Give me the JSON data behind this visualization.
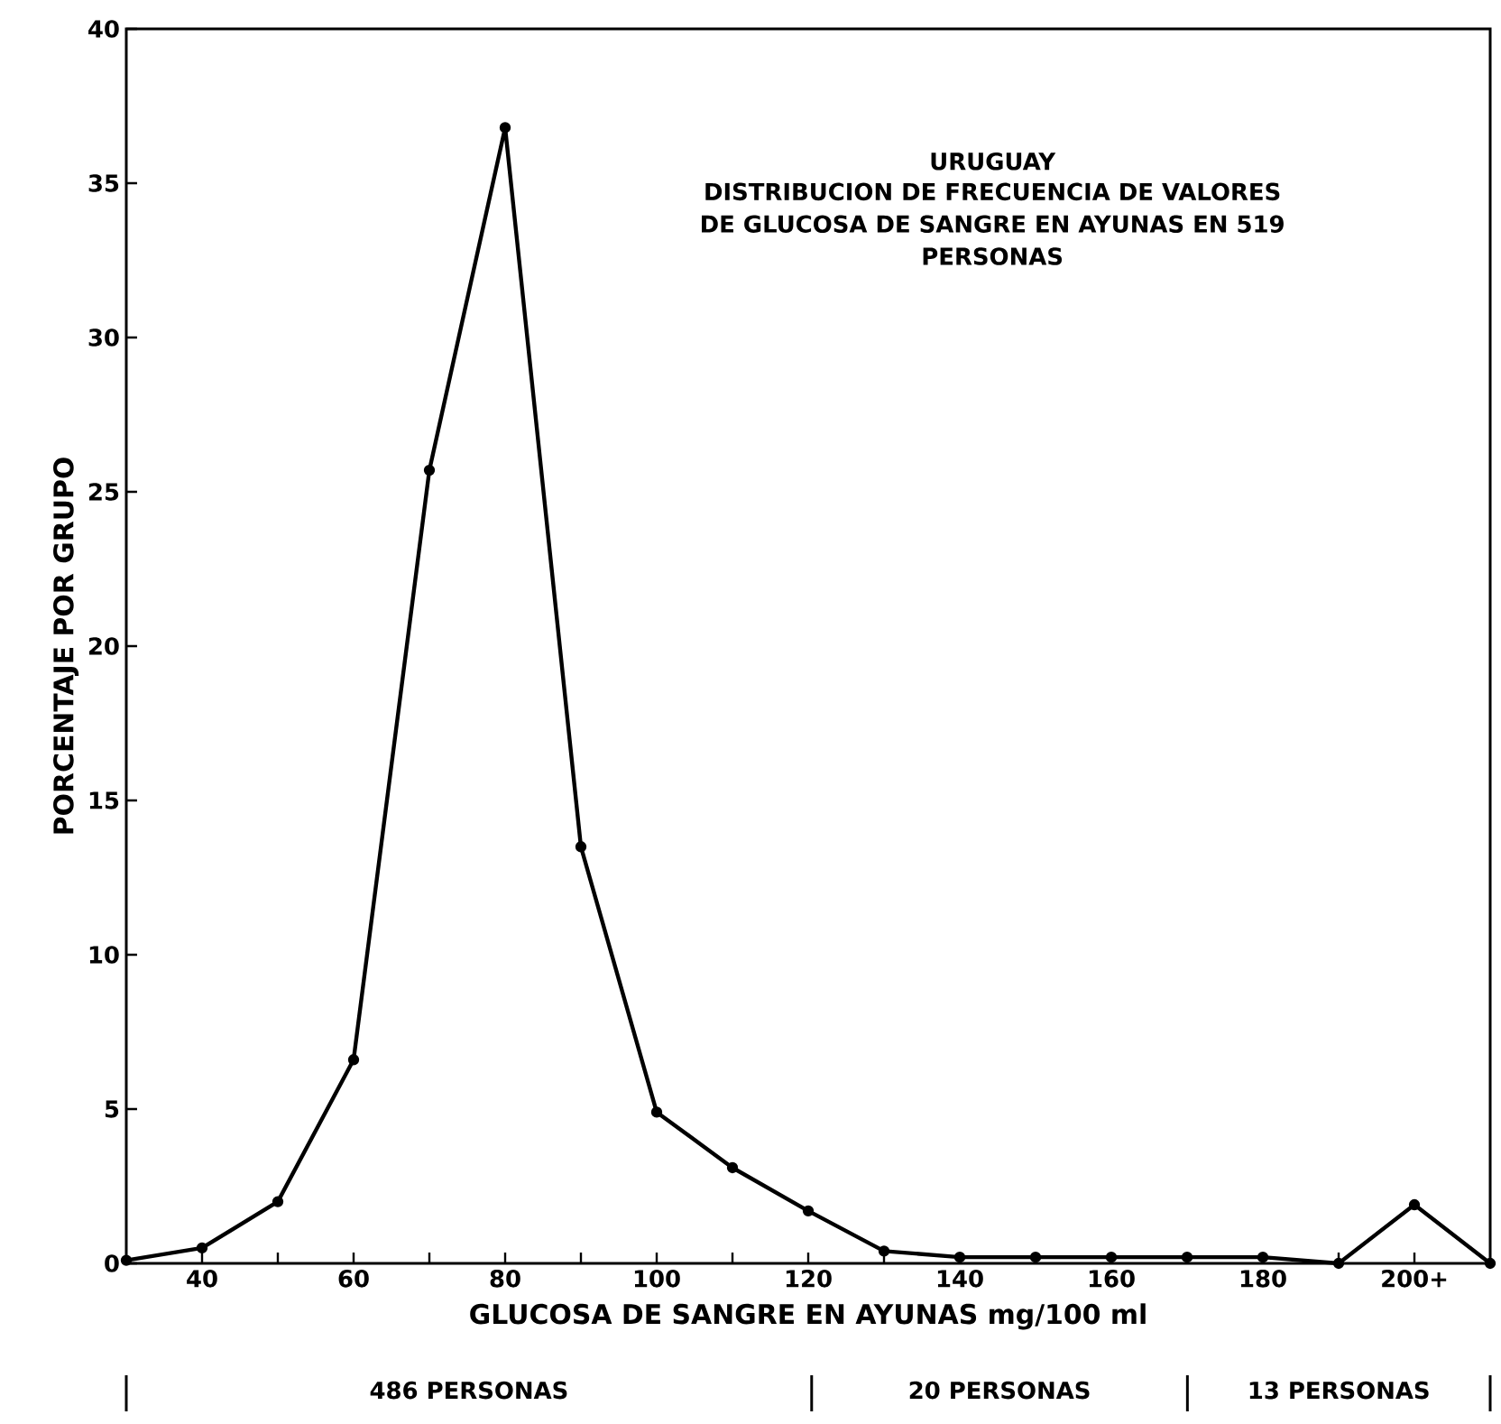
{
  "chart_data": {
    "type": "line",
    "title": "URUGUAY",
    "subtitle": "DISTRIBUCION DE FRECUENCIA DE VALORES DE GLUCOSA DE SANGRE EN AYUNAS EN 519 PERSONAS",
    "xlabel": "GLUCOSA DE SANGRE EN AYUNAS mg/100 ml",
    "ylabel": "PORCENTAJE POR GRUPO",
    "x": [
      30,
      40,
      50,
      60,
      70,
      80,
      90,
      100,
      110,
      120,
      130,
      140,
      150,
      160,
      170,
      180,
      190,
      200,
      210
    ],
    "series": [
      {
        "color": "#000000",
        "values": [
          0.1,
          0.5,
          2.0,
          6.6,
          25.7,
          36.8,
          13.5,
          4.9,
          3.1,
          1.7,
          0.4,
          0.2,
          0.2,
          0.2,
          0.2,
          0.2,
          0,
          1.9,
          0
        ]
      }
    ],
    "xlim": [
      30,
      210
    ],
    "xticks": [
      40,
      {
        "value": 50,
        "label": null
      },
      60,
      {
        "value": 70,
        "label": null
      },
      80,
      {
        "value": 90,
        "label": null
      },
      100,
      {
        "value": 110,
        "label": null
      },
      120,
      {
        "value": 130,
        "label": null
      },
      140,
      {
        "value": 150,
        "label": null
      },
      160,
      {
        "value": 170,
        "label": null
      },
      180,
      {
        "value": 190,
        "label": null
      },
      {
        "value": 200,
        "label": "200+"
      }
    ],
    "ylim": [
      0,
      40
    ],
    "yticks": [
      0,
      5,
      10,
      15,
      20,
      25,
      30,
      35,
      40
    ],
    "grid": false,
    "marker": "circle",
    "line_style": "solid",
    "annotations": [
      "486 PERSONAS",
      "20 PERSONAS",
      "13 PERSONAS"
    ]
  }
}
